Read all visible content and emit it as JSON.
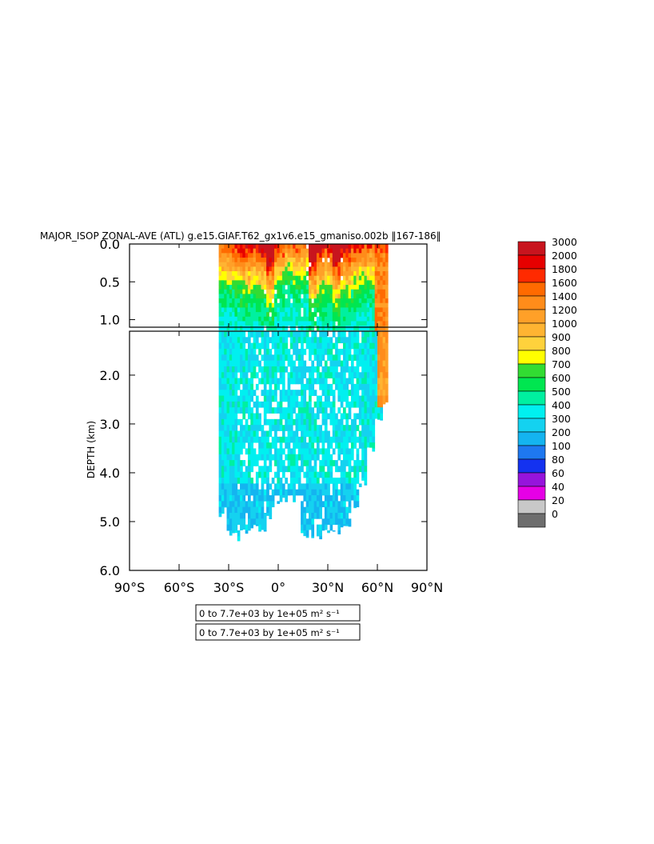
{
  "chart_data": {
    "type": "heatmap",
    "title": "MAJOR_ISOP ZONAL-AVE (ATL) g.e15.GIAF.T62_gx1v6.e15_gmaniso.002b ‖167-186‖",
    "ylabel": "DEPTH (km)",
    "xlabel": "",
    "xlim": [
      -90,
      90
    ],
    "ylim": [
      0,
      6
    ],
    "x_ticks": [
      "90°S",
      "60°S",
      "30°S",
      "0°",
      "30°N",
      "60°N",
      "90°N"
    ],
    "x_tick_values": [
      -90,
      -60,
      -30,
      0,
      30,
      60,
      90
    ],
    "y_ticks_upper": [
      "0.0",
      "0.5",
      "1.0"
    ],
    "y_tick_values_upper": [
      0,
      0.5,
      1.0
    ],
    "y_ticks_lower": [
      "2.0",
      "3.0",
      "4.0",
      "5.0",
      "6.0"
    ],
    "y_tick_values_lower": [
      2,
      3,
      4,
      5,
      6
    ],
    "panels": [
      {
        "name": "upper",
        "depth_range": [
          0,
          1.1
        ]
      },
      {
        "name": "lower",
        "depth_range": [
          1.1,
          6.0
        ]
      }
    ],
    "colorbar": {
      "levels": [
        "3000",
        "2000",
        "1800",
        "1600",
        "1400",
        "1200",
        "1000",
        "900",
        "800",
        "700",
        "600",
        "500",
        "400",
        "300",
        "200",
        "100",
        "80",
        "60",
        "40",
        "20",
        "0"
      ],
      "colors": [
        "#c8141e",
        "#e60000",
        "#ff2a00",
        "#ff6a00",
        "#ff8c1a",
        "#ffa028",
        "#ffb432",
        "#ffd23c",
        "#ffff00",
        "#32dc32",
        "#00e650",
        "#00f0a0",
        "#00f0f0",
        "#14d2f0",
        "#14b4f0",
        "#1e78f0",
        "#1432f0",
        "#9614dc",
        "#e600e6",
        "#c8c8c8",
        "#6e6e6e"
      ]
    },
    "info_boxes": [
      "0 to 7.7e+03 by 1e+05 m² s⁻¹",
      "0 to 7.7e+03 by 1e+05 m² s⁻¹"
    ],
    "field_sketch": {
      "description_free": true,
      "columns": [
        {
          "lat": -35,
          "max_depth": 4.9,
          "top_value": 1200
        },
        {
          "lat": -30,
          "max_depth": 5.4,
          "top_value": 1400
        },
        {
          "lat": -25,
          "max_depth": 5.4,
          "top_value": 1600
        },
        {
          "lat": -20,
          "max_depth": 5.3,
          "top_value": 1800
        },
        {
          "lat": -15,
          "max_depth": 5.2,
          "top_value": 1600
        },
        {
          "lat": -10,
          "max_depth": 5.4,
          "top_value": 2000
        },
        {
          "lat": -5,
          "max_depth": 5.0,
          "top_value": 3000
        },
        {
          "lat": 0,
          "max_depth": 4.7,
          "top_value": 1400
        },
        {
          "lat": 5,
          "max_depth": 4.6,
          "top_value": 900
        },
        {
          "lat": 10,
          "max_depth": 4.6,
          "top_value": 1200
        },
        {
          "lat": 15,
          "max_depth": 5.4,
          "top_value": 1000
        },
        {
          "lat": 20,
          "max_depth": 5.4,
          "top_value": 3000
        },
        {
          "lat": 25,
          "max_depth": 5.4,
          "top_value": 2000
        },
        {
          "lat": 30,
          "max_depth": 5.3,
          "top_value": 1600
        },
        {
          "lat": 35,
          "max_depth": 5.4,
          "top_value": 3000
        },
        {
          "lat": 40,
          "max_depth": 5.2,
          "top_value": 2000
        },
        {
          "lat": 45,
          "max_depth": 4.8,
          "top_value": 1600
        },
        {
          "lat": 50,
          "max_depth": 4.3,
          "top_value": 1400
        },
        {
          "lat": 55,
          "max_depth": 3.7,
          "top_value": 1200
        },
        {
          "lat": 60,
          "max_depth": 3.0,
          "top_value": 1400
        },
        {
          "lat": 65,
          "max_depth": 2.7,
          "top_value": 1600
        }
      ]
    }
  }
}
